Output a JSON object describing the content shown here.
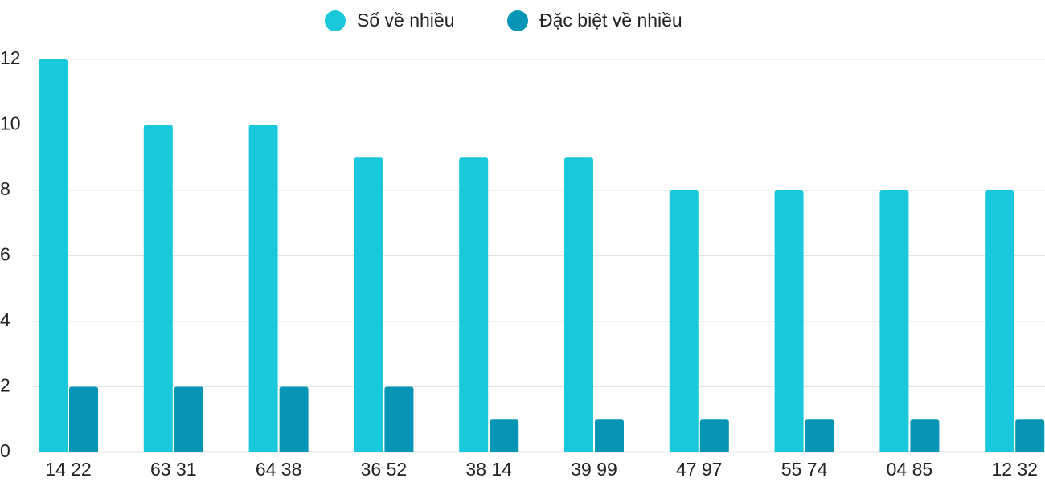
{
  "chart_data": {
    "type": "bar",
    "categories": [
      "14 22",
      "63 31",
      "64 38",
      "36 52",
      "38 14",
      "39 99",
      "47 97",
      "55 74",
      "04 85",
      "12 32"
    ],
    "series": [
      {
        "name": "Số về nhiều",
        "color": "#1ac8db",
        "values": [
          12,
          10,
          10,
          9,
          9,
          9,
          8,
          8,
          8,
          8
        ]
      },
      {
        "name": "Đặc biệt về nhiều",
        "color": "#0795b5",
        "values": [
          2,
          2,
          2,
          2,
          1,
          1,
          1,
          1,
          1,
          1
        ]
      }
    ],
    "ylim": [
      0,
      12
    ],
    "yticks": [
      0,
      2,
      4,
      6,
      8,
      10,
      12
    ],
    "grid": true,
    "legend": "top"
  }
}
